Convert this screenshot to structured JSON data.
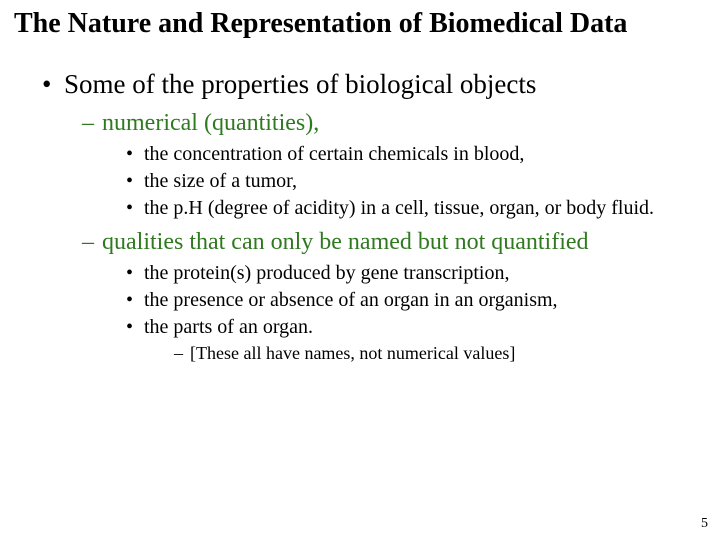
{
  "colors": {
    "accent_green": "#2f7a1f",
    "text_black": "#000000",
    "background": "#ffffff"
  },
  "typography": {
    "font_family": "Times New Roman",
    "title_size_pt": 28,
    "lvl1_size_pt": 27,
    "lvl2_size_pt": 24,
    "lvl3_size_pt": 20,
    "lvl4_size_pt": 18,
    "page_num_size_pt": 14
  },
  "title": "The Nature and Representation of Biomedical Data",
  "bullet_chars": {
    "lvl1": "•",
    "lvl2": "–",
    "lvl3": "•",
    "lvl4": "–"
  },
  "content": {
    "lvl1_text": "Some of the properties of biological objects",
    "group1": {
      "heading": "numerical (quantities),",
      "items": [
        "the concentration of certain chemicals in blood,",
        "the size of a tumor,",
        "the p.H (degree of acidity) in a cell, tissue, organ, or body fluid."
      ]
    },
    "group2": {
      "heading": "qualities that can only be named but not quantified",
      "items": [
        "the protein(s) produced by gene transcription,",
        "the presence or absence of an organ in an organism,",
        "the parts of an organ."
      ],
      "note": "[These all have names, not numerical values]"
    }
  },
  "page_number": "5"
}
